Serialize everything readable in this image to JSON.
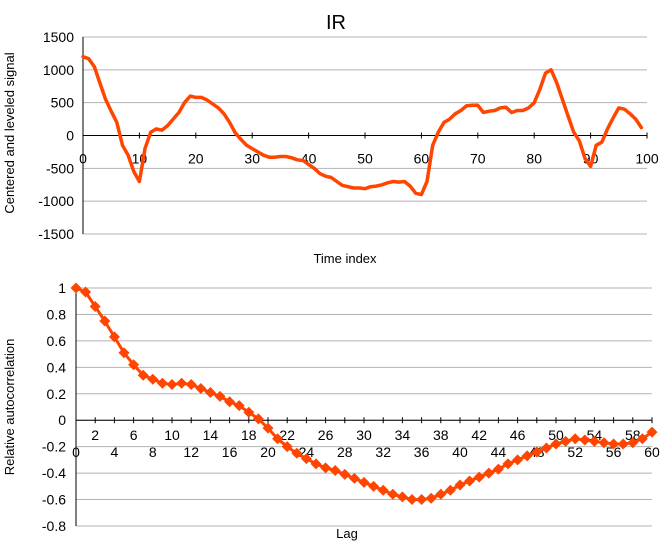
{
  "colors": {
    "series": "#FF4500",
    "grid": "#b3b3b3",
    "axis": "#000000"
  },
  "chart_data": [
    {
      "type": "line",
      "title": "IR",
      "xlabel": "Time index",
      "ylabel": "Centered and leveled signal",
      "xlim": [
        0,
        100
      ],
      "ylim": [
        -1500,
        1500
      ],
      "xticks": [
        0,
        10,
        20,
        30,
        40,
        50,
        60,
        70,
        80,
        90,
        100
      ],
      "yticks": [
        -1500,
        -1000,
        -500,
        0,
        500,
        1000,
        1500
      ],
      "grid": "horizontal",
      "series": [
        {
          "points": [
            [
              0,
              1200
            ],
            [
              1,
              1170
            ],
            [
              2,
              1050
            ],
            [
              3,
              800
            ],
            [
              4,
              550
            ],
            [
              5,
              370
            ],
            [
              6,
              200
            ],
            [
              7,
              -150
            ],
            [
              8,
              -300
            ],
            [
              9,
              -550
            ],
            [
              10,
              -700
            ],
            [
              11,
              -200
            ],
            [
              12,
              50
            ],
            [
              13,
              100
            ],
            [
              14,
              80
            ],
            [
              15,
              150
            ],
            [
              16,
              250
            ],
            [
              17,
              350
            ],
            [
              18,
              500
            ],
            [
              19,
              600
            ],
            [
              20,
              580
            ],
            [
              21,
              580
            ],
            [
              22,
              540
            ],
            [
              23,
              480
            ],
            [
              24,
              420
            ],
            [
              25,
              330
            ],
            [
              26,
              200
            ],
            [
              27,
              40
            ],
            [
              28,
              -60
            ],
            [
              29,
              -150
            ],
            [
              30,
              -200
            ],
            [
              31,
              -250
            ],
            [
              32,
              -300
            ],
            [
              33,
              -330
            ],
            [
              34,
              -330
            ],
            [
              35,
              -320
            ],
            [
              36,
              -320
            ],
            [
              37,
              -340
            ],
            [
              38,
              -370
            ],
            [
              39,
              -380
            ],
            [
              40,
              -440
            ],
            [
              41,
              -500
            ],
            [
              42,
              -580
            ],
            [
              43,
              -620
            ],
            [
              44,
              -640
            ],
            [
              45,
              -700
            ],
            [
              46,
              -760
            ],
            [
              47,
              -780
            ],
            [
              48,
              -800
            ],
            [
              49,
              -800
            ],
            [
              50,
              -810
            ],
            [
              51,
              -780
            ],
            [
              52,
              -770
            ],
            [
              53,
              -750
            ],
            [
              54,
              -720
            ],
            [
              55,
              -700
            ],
            [
              56,
              -710
            ],
            [
              57,
              -700
            ],
            [
              58,
              -770
            ],
            [
              59,
              -880
            ],
            [
              60,
              -900
            ],
            [
              61,
              -700
            ],
            [
              62,
              -150
            ],
            [
              63,
              50
            ],
            [
              64,
              200
            ],
            [
              65,
              250
            ],
            [
              66,
              330
            ],
            [
              67,
              380
            ],
            [
              68,
              450
            ],
            [
              69,
              460
            ],
            [
              70,
              460
            ],
            [
              71,
              350
            ],
            [
              72,
              370
            ],
            [
              73,
              380
            ],
            [
              74,
              420
            ],
            [
              75,
              430
            ],
            [
              76,
              350
            ],
            [
              77,
              380
            ],
            [
              78,
              380
            ],
            [
              79,
              420
            ],
            [
              80,
              500
            ],
            [
              81,
              700
            ],
            [
              82,
              950
            ],
            [
              83,
              1000
            ],
            [
              84,
              800
            ],
            [
              85,
              550
            ],
            [
              86,
              300
            ],
            [
              87,
              50
            ],
            [
              88,
              -80
            ],
            [
              89,
              -350
            ],
            [
              90,
              -470
            ],
            [
              91,
              -150
            ],
            [
              92,
              -100
            ],
            [
              93,
              100
            ],
            [
              94,
              270
            ],
            [
              95,
              420
            ],
            [
              96,
              400
            ],
            [
              97,
              330
            ],
            [
              98,
              250
            ],
            [
              99,
              120
            ]
          ]
        }
      ]
    },
    {
      "type": "line",
      "xlabel": "Lag",
      "ylabel": "Relative  autocorrelation",
      "xlim": [
        0,
        60
      ],
      "ylim": [
        -0.8,
        1
      ],
      "xticks": [
        0,
        2,
        4,
        6,
        8,
        10,
        12,
        14,
        16,
        18,
        20,
        22,
        24,
        26,
        28,
        30,
        32,
        34,
        36,
        38,
        40,
        42,
        44,
        46,
        48,
        50,
        52,
        54,
        56,
        58,
        60
      ],
      "yticks": [
        -0.8,
        -0.6,
        -0.4,
        -0.2,
        0,
        0.2,
        0.4,
        0.6,
        0.8,
        1
      ],
      "ytick_labels": [
        "-0.8",
        "-0.6",
        "-0.4",
        "-0.2",
        "0",
        "0.2",
        "0.4",
        "0.6",
        "0.8",
        "1"
      ],
      "grid": "horizontal",
      "markers": "diamond",
      "series": [
        {
          "x": [
            0,
            1,
            2,
            3,
            4,
            5,
            6,
            7,
            8,
            9,
            10,
            11,
            12,
            13,
            14,
            15,
            16,
            17,
            18,
            19,
            20,
            21,
            22,
            23,
            24,
            25,
            26,
            27,
            28,
            29,
            30,
            31,
            32,
            33,
            34,
            35,
            36,
            37,
            38,
            39,
            40,
            41,
            42,
            43,
            44,
            45,
            46,
            47,
            48,
            49,
            50,
            51,
            52,
            53,
            54,
            55,
            56,
            57,
            58,
            59,
            60
          ],
          "values": [
            1,
            0.97,
            0.86,
            0.75,
            0.63,
            0.51,
            0.42,
            0.34,
            0.31,
            0.28,
            0.27,
            0.28,
            0.27,
            0.24,
            0.21,
            0.18,
            0.14,
            0.11,
            0.06,
            0.01,
            -0.06,
            -0.14,
            -0.2,
            -0.25,
            -0.29,
            -0.33,
            -0.36,
            -0.38,
            -0.41,
            -0.44,
            -0.47,
            -0.5,
            -0.53,
            -0.56,
            -0.58,
            -0.6,
            -0.6,
            -0.59,
            -0.56,
            -0.53,
            -0.49,
            -0.46,
            -0.43,
            -0.4,
            -0.37,
            -0.33,
            -0.3,
            -0.27,
            -0.24,
            -0.21,
            -0.18,
            -0.16,
            -0.14,
            -0.15,
            -0.16,
            -0.17,
            -0.18,
            -0.18,
            -0.17,
            -0.14,
            -0.09
          ]
        }
      ]
    }
  ]
}
